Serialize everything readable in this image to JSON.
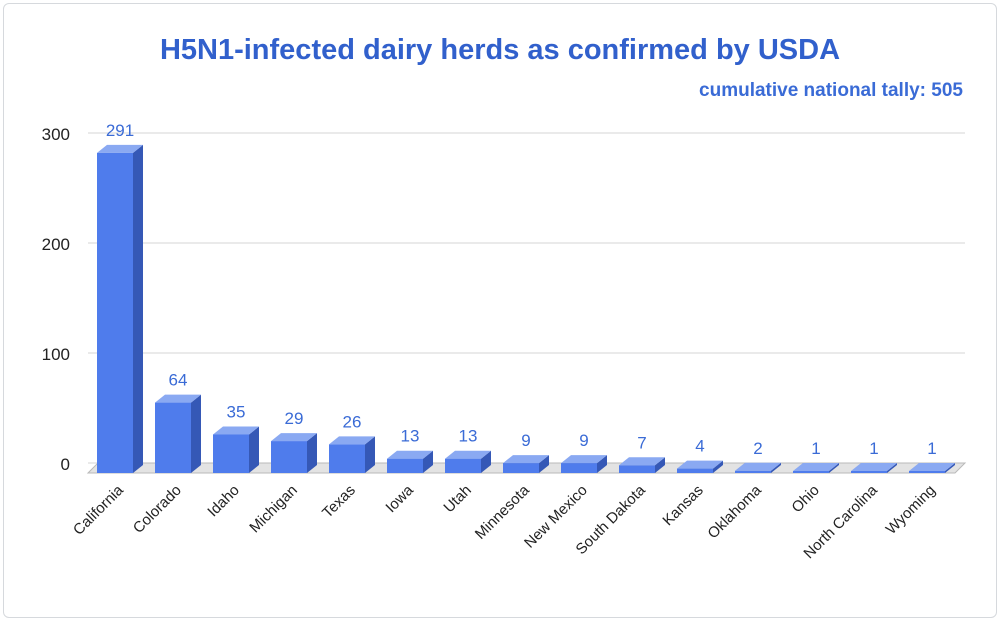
{
  "chart_data": {
    "type": "bar",
    "title": "H5N1-infected dairy herds as confirmed by USDA",
    "subtitle": "cumulative national tally: 505",
    "categories": [
      "California",
      "Colorado",
      "Idaho",
      "Michigan",
      "Texas",
      "Iowa",
      "Utah",
      "Minnesota",
      "New Mexico",
      "South Dakota",
      "Kansas",
      "Oklahoma",
      "Ohio",
      "North Carolina",
      "Wyoming"
    ],
    "values": [
      291,
      64,
      35,
      29,
      26,
      13,
      13,
      9,
      9,
      7,
      4,
      2,
      1,
      1,
      1
    ],
    "yticks": [
      0,
      100,
      200,
      300
    ],
    "ylim": [
      0,
      300
    ],
    "xlabel": "",
    "ylabel": "",
    "grid": true,
    "legend": "none",
    "colors": {
      "bar_front": "#4f7cec",
      "bar_side": "#3558b6",
      "bar_top": "#8aa9f2",
      "label": "#3a6bd6",
      "title": "#3160cc",
      "grid": "#d4d4d4",
      "floor": "#b9b9b9"
    }
  }
}
